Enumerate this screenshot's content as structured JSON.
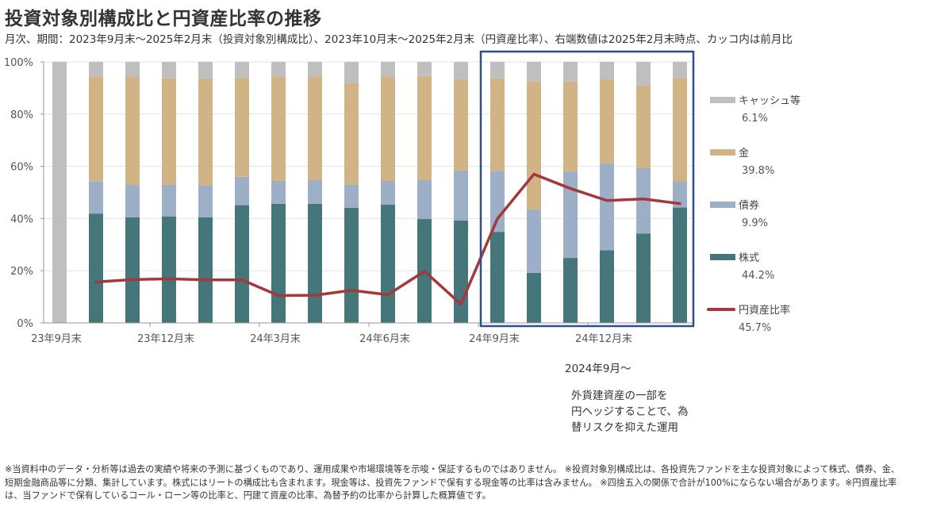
{
  "header": {
    "title": "投資対象別構成比と円資産比率の推移",
    "subtitle": "月次、期間：2023年9月末～2025年2月末（投資対象別構成比）、2023年10月末～2025年2月末（円資産比率）、右端数値は2025年2月末時点、カッコ内は前月比"
  },
  "annotation": {
    "heading": "2024年9月～",
    "lines": [
      "外貨建資産の一部を",
      "円ヘッジすることで、為",
      "替リスクを抑えた運用"
    ]
  },
  "footer": {
    "lines": [
      "※当資料中のデータ・分析等は過去の実績や将来の予測に基づくものであり、運用成果や市場環境等を示唆・保証するものではありません。 ※投資対象別構成比は、各投資先ファンドを主な投資対象によって株式、債券、金、",
      "短期金融商品等に分類、集計しています。株式にはリートの構成比も含まれます。現金等は、投資先ファンドで保有する現金等の比率は含みません。 ※四捨五入の関係で合計が100%にならない場合があります。※円資産比率",
      "は、当ファンドで保有しているコール・ローン等の比率と、円建て資産の比率、為替予約の比率から計算した概算値です。"
    ]
  },
  "chart_data": {
    "type": "bar",
    "stacked": true,
    "title": "投資対象別構成比と円資産比率の推移",
    "xlabel": "",
    "ylabel": "",
    "ylim": [
      0,
      100
    ],
    "yticks": [
      "0%",
      "20%",
      "40%",
      "60%",
      "80%",
      "100%"
    ],
    "grid": true,
    "legend_position": "right",
    "categories": [
      "2023-09",
      "2023-10",
      "2023-11",
      "2023-12",
      "2024-01",
      "2024-02",
      "2024-03",
      "2024-04",
      "2024-05",
      "2024-06",
      "2024-07",
      "2024-08",
      "2024-09",
      "2024-10",
      "2024-11",
      "2024-12",
      "2025-01",
      "2025-02"
    ],
    "xtick_labels": [
      {
        "index": 0,
        "label": "23年9月末"
      },
      {
        "index": 3,
        "label": "23年12月末"
      },
      {
        "index": 6,
        "label": "24年3月末"
      },
      {
        "index": 9,
        "label": "24年6月末"
      },
      {
        "index": 12,
        "label": "24年9月末"
      },
      {
        "index": 15,
        "label": "24年12月末"
      }
    ],
    "series": [
      {
        "name": "株式",
        "kind": "bar",
        "color": "#44767a",
        "latest_label": "44.2%",
        "values": [
          0,
          41.9,
          40.5,
          40.8,
          40.5,
          45.1,
          45.6,
          45.6,
          44.1,
          45.3,
          39.8,
          39.2,
          34.9,
          19.2,
          24.9,
          27.8,
          34.2,
          44.2
        ]
      },
      {
        "name": "債券",
        "kind": "bar",
        "color": "#9dafc6",
        "latest_label": "9.9%",
        "values": [
          0,
          12.3,
          12.4,
          12.1,
          12.1,
          10.9,
          8.8,
          9.1,
          8.8,
          9.1,
          14.9,
          19.2,
          23.4,
          24.1,
          33.1,
          33.3,
          25.2,
          9.9
        ]
      },
      {
        "name": "金",
        "kind": "bar",
        "color": "#d0b486",
        "latest_label": "39.8%",
        "values": [
          0,
          40.2,
          41.5,
          40.8,
          41.1,
          37.9,
          40.0,
          39.7,
          38.9,
          40.0,
          39.9,
          35.1,
          35.4,
          49.2,
          34.5,
          32.2,
          31.5,
          39.8
        ]
      },
      {
        "name": "キャッシュ等",
        "kind": "bar",
        "color": "#bfbfbf",
        "latest_label": "6.1%",
        "values": [
          100,
          5.6,
          5.6,
          6.3,
          6.3,
          6.1,
          5.6,
          5.6,
          8.2,
          5.6,
          5.4,
          6.5,
          6.3,
          7.5,
          7.5,
          6.7,
          9.1,
          6.1
        ]
      },
      {
        "name": "円資産比率",
        "kind": "line",
        "color": "#a3383d",
        "latest_label": "45.7%",
        "values": [
          null,
          15.7,
          16.6,
          16.9,
          16.5,
          16.5,
          10.5,
          10.6,
          12.5,
          10.8,
          19.8,
          7.2,
          39.9,
          57.0,
          51.5,
          46.9,
          47.5,
          45.7
        ]
      }
    ],
    "highlight_range": {
      "from": "2024-09",
      "to": "2025-02",
      "color": "#2f4f8a"
    }
  }
}
